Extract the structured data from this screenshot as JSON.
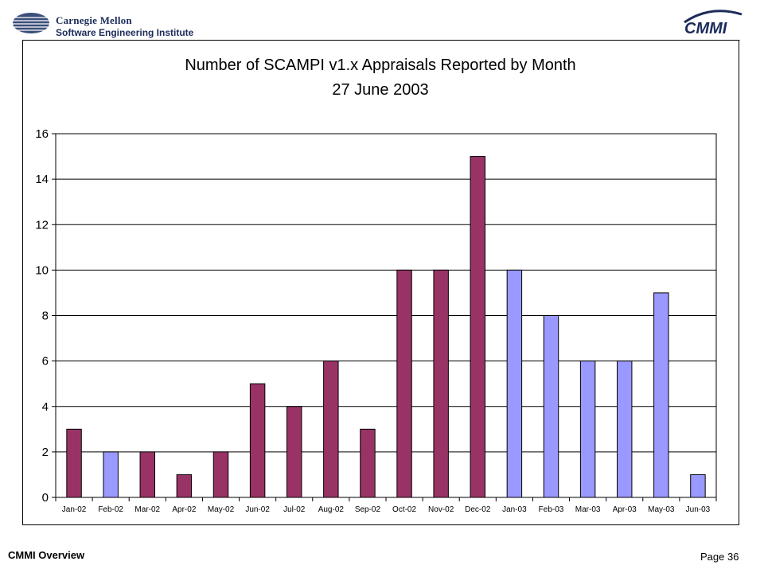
{
  "header": {
    "org_line1": "Carnegie Mellon",
    "org_line2": "Software Engineering Institute",
    "logo_text": "CMMI"
  },
  "footer": {
    "left": "CMMI Overview",
    "right": "Page 36"
  },
  "colors": {
    "bar_2002": "#993366",
    "bar_2003": "#9999ff",
    "frame": "#000000",
    "grid": "#000000"
  },
  "chart_data": {
    "type": "bar",
    "title": "Number of SCAMPI v1.x Appraisals Reported by Month",
    "subtitle": "27 June 2003",
    "xlabel": "",
    "ylabel": "",
    "ylim": [
      0,
      16
    ],
    "yticks": [
      0,
      2,
      4,
      6,
      8,
      10,
      12,
      14,
      16
    ],
    "grid": true,
    "legend": "none",
    "categories": [
      "Jan-02",
      "Feb-02",
      "Mar-02",
      "Apr-02",
      "May-02",
      "Jun-02",
      "Jul-02",
      "Aug-02",
      "Sep-02",
      "Oct-02",
      "Nov-02",
      "Dec-02",
      "Jan-03",
      "Feb-03",
      "Mar-03",
      "Apr-03",
      "May-03",
      "Jun-03"
    ],
    "values": [
      3,
      2,
      2,
      1,
      2,
      5,
      4,
      6,
      3,
      10,
      10,
      15,
      10,
      8,
      6,
      6,
      9,
      1
    ],
    "bar_colors": [
      "#993366",
      "#9999ff",
      "#993366",
      "#993366",
      "#993366",
      "#993366",
      "#993366",
      "#993366",
      "#993366",
      "#993366",
      "#993366",
      "#993366",
      "#9999ff",
      "#9999ff",
      "#9999ff",
      "#9999ff",
      "#9999ff",
      "#9999ff"
    ]
  }
}
